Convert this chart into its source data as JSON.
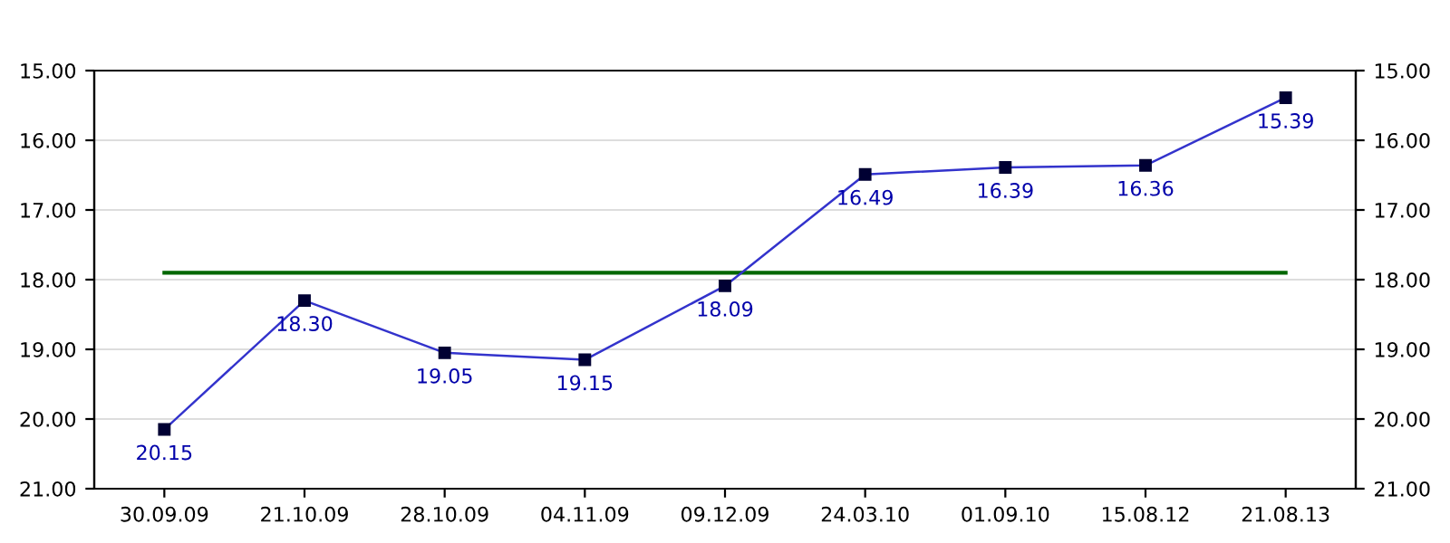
{
  "chart_data": {
    "type": "line",
    "categories": [
      "30.09.09",
      "21.10.09",
      "28.10.09",
      "04.11.09",
      "09.12.09",
      "24.03.10",
      "01.09.10",
      "15.08.12",
      "21.08.13"
    ],
    "series": [
      {
        "color": "#3333cc",
        "values": [
          20.15,
          18.3,
          19.05,
          19.15,
          18.09,
          16.49,
          16.39,
          16.36,
          15.39
        ],
        "value_labels": [
          "20.15",
          "18.30",
          "19.05",
          "19.15",
          "18.09",
          "16.49",
          "16.39",
          "16.36",
          "15.39"
        ]
      }
    ],
    "marker": "square",
    "line_style": "solid",
    "ylim": [
      21,
      15
    ],
    "yticks": [
      {
        "value": 15,
        "label": "15.00"
      },
      {
        "value": 16,
        "label": "16.00"
      },
      {
        "value": 17,
        "label": "17.00"
      },
      {
        "value": 18,
        "label": "18.00"
      },
      {
        "value": 19,
        "label": "19.00"
      },
      {
        "value": 20,
        "label": "20.00"
      },
      {
        "value": 21,
        "label": "21.00"
      }
    ],
    "y2lim": [
      21,
      15
    ],
    "y2ticks": [
      {
        "value": 15,
        "label": "15.00"
      },
      {
        "value": 16,
        "label": "16.00"
      },
      {
        "value": 17,
        "label": "17.00"
      },
      {
        "value": 18,
        "label": "18.00"
      },
      {
        "value": 19,
        "label": "19.00"
      },
      {
        "value": 20,
        "label": "20.00"
      },
      {
        "value": 21,
        "label": "21.00"
      }
    ],
    "ref_lines": [
      {
        "axis": "y",
        "value": 17.9,
        "color": "#006600",
        "line_style": "solid"
      }
    ],
    "grid": "y"
  }
}
